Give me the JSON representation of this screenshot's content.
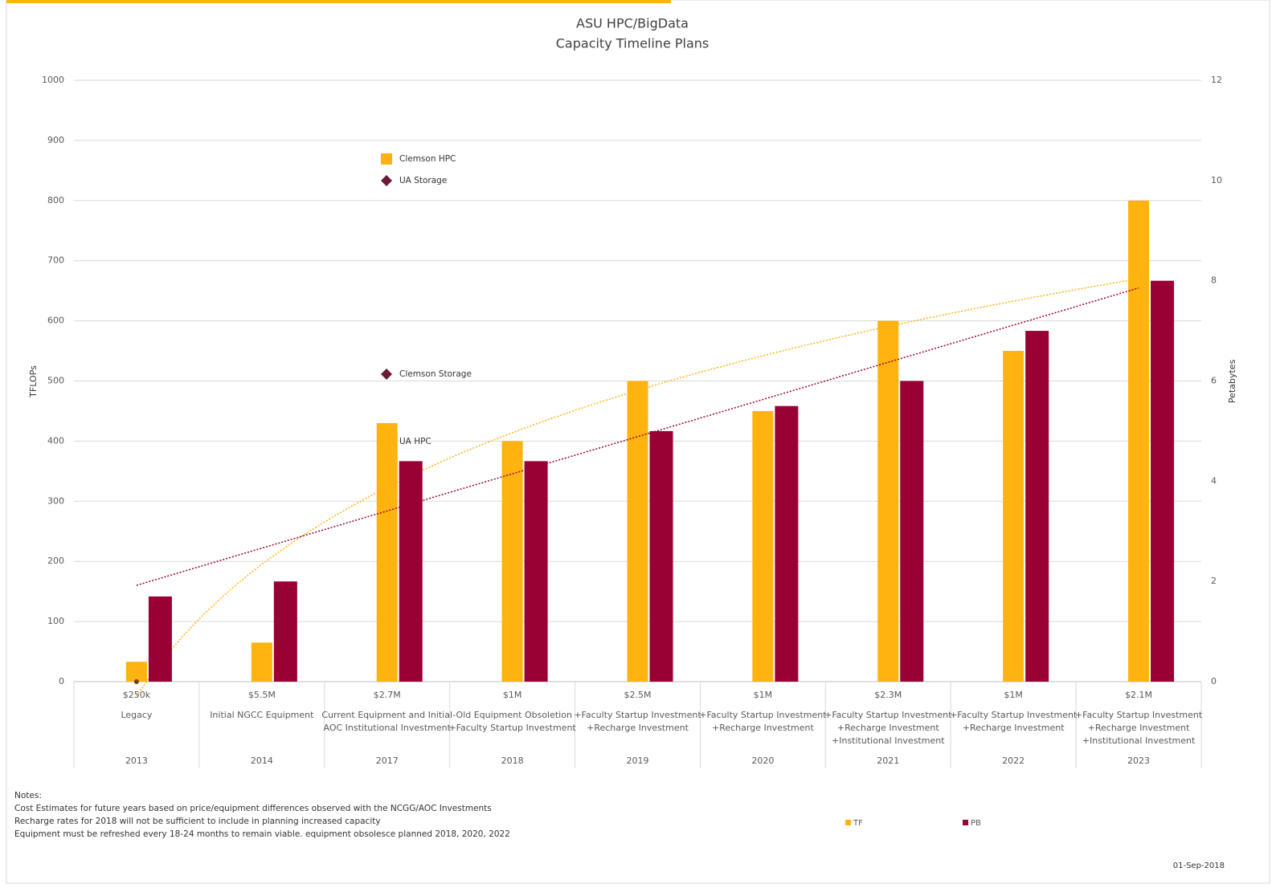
{
  "chart_data": {
    "type": "bar",
    "title": [
      "ASU HPC/BigData",
      "Capacity Timeline Plans"
    ],
    "y_label": "TFLOPs",
    "y2_label": "Petabytes",
    "categories": [
      "2013",
      "2014",
      "2017",
      "2018",
      "2019",
      "2020",
      "2021",
      "2022",
      "2023"
    ],
    "costs": [
      "$250k",
      "$5.5M",
      "$2.7M",
      "$1M",
      "$2.5M",
      "$1M",
      "$2.3M",
      "$1M",
      "$2.1M"
    ],
    "descriptions": [
      [
        "Legacy"
      ],
      [
        "Initial NGCC Equipment"
      ],
      [
        "Current Equipment and Initial",
        "AOC Institutional Investment"
      ],
      [
        "-Old Equipment Obsoletion",
        "+Faculty Startup Investment"
      ],
      [
        "+Faculty Startup Investment",
        "+Recharge Investment"
      ],
      [
        "+Faculty Startup Investment",
        "+Recharge Investment"
      ],
      [
        "+Faculty Startup Investment",
        "+Recharge Investment",
        "+Institutional Investment"
      ],
      [
        "+Faculty Startup Investment",
        "+Recharge Investment"
      ],
      [
        "+Faculty Startup Investment",
        "+Recharge Investment",
        "+Institutional Investment"
      ]
    ],
    "series": [
      {
        "name": "TF",
        "color": "#ffb30f",
        "trendline": "logarithmic",
        "values": [
          33,
          65,
          430,
          400,
          500,
          450,
          600,
          550,
          800
        ]
      },
      {
        "name": "PB",
        "color": "#990033",
        "axis": "y2",
        "trendline": "linear",
        "values": [
          1.7,
          2,
          4.4,
          4.4,
          5,
          5.5,
          6,
          7,
          8
        ]
      }
    ],
    "ylim": [
      0,
      1000
    ],
    "yticks": [
      0,
      100,
      200,
      300,
      400,
      500,
      600,
      700,
      800,
      900,
      1000
    ],
    "y2lim": [
      0,
      12
    ],
    "y2ticks": [
      0,
      2,
      4,
      6,
      8,
      10,
      12
    ],
    "grid": true,
    "legend": "bottom",
    "annotations": [
      "Clemson HPC",
      "UA Storage",
      "Clemson Storage",
      "UA HPC"
    ],
    "notes": [
      "Notes:",
      "Cost Estimates for future years based on price/equipment differences observed with the NCGG/AOC Investments",
      "Recharge rates for 2018 will not be sufficient to include in planning increased capacity",
      "Equipment must be refreshed every 18-24 months to remain viable.  equipment obsolesce planned 2018, 2020, 2022"
    ],
    "date": "01-Sep-2018"
  }
}
